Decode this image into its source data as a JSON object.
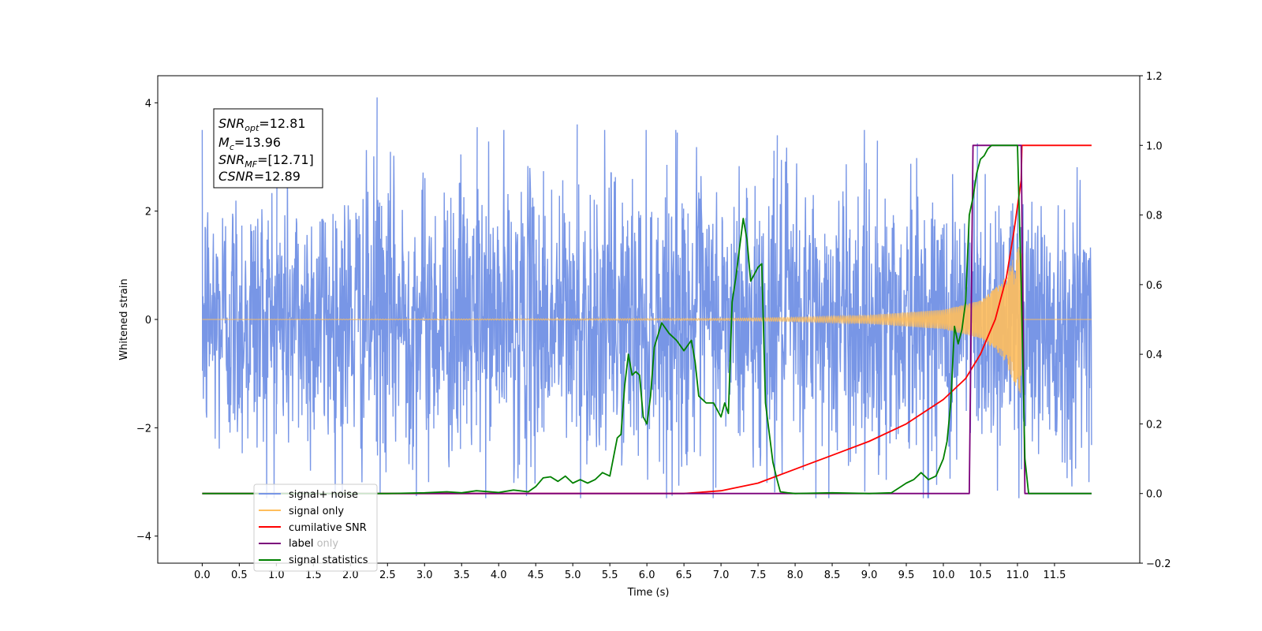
{
  "chart_data": {
    "type": "line",
    "xlabel": "Time (s)",
    "ylabel_left": "Whitened strain",
    "ylabel_right": "",
    "xlim": [
      -0.6,
      12.65
    ],
    "ylim_left": [
      -4.5,
      4.5
    ],
    "ylim_right": [
      -0.2,
      1.2
    ],
    "x_ticks": [
      0.0,
      0.5,
      1.0,
      1.5,
      2.0,
      2.5,
      3.0,
      3.5,
      4.0,
      4.5,
      5.0,
      5.5,
      6.0,
      6.5,
      7.0,
      7.5,
      8.0,
      8.5,
      9.0,
      9.5,
      10.0,
      10.5,
      11.0,
      11.5
    ],
    "x_tick_labels": [
      "0.0",
      "0.5",
      "1.0",
      "1.5",
      "2.0",
      "2.5",
      "3.0",
      "3.5",
      "4.0",
      "4.5",
      "5.0",
      "5.5",
      "6.0",
      "6.5",
      "7.0",
      "7.5",
      "8.0",
      "8.5",
      "9.0",
      "9.5",
      "10.0",
      "10.5",
      "11.0",
      "11.5"
    ],
    "y_left_ticks": [
      -4,
      -2,
      0,
      2,
      4
    ],
    "y_left_tick_labels": [
      "−4",
      "−2",
      "0",
      "2",
      "4"
    ],
    "y_right_ticks": [
      -0.2,
      0.0,
      0.2,
      0.4,
      0.6,
      0.8,
      1.0,
      1.2
    ],
    "y_right_tick_labels": [
      "−0.2",
      "0.0",
      "0.2",
      "0.4",
      "0.6",
      "0.8",
      "1.0",
      "1.2"
    ],
    "grid": false,
    "legend_placement": "lower-left",
    "annotation": {
      "lines": [
        {
          "base": "SNR",
          "sub": "opt",
          "value": "=12.81"
        },
        {
          "base": "M",
          "sub": "c",
          "value": "=13.96"
        },
        {
          "base": "SNR",
          "sub": "MF",
          "value": "=[12.71]"
        },
        {
          "base": "CSNR",
          "sub": "",
          "value": "=12.89"
        }
      ]
    },
    "series": [
      {
        "name": "signal+ noise",
        "axis": "left",
        "color": "#7896e6",
        "kind": "noise",
        "x_range": [
          0.0,
          12.0
        ],
        "amplitude_typical": 1.8,
        "peak_values": [
          3.85,
          4.1,
          3.55,
          3.6,
          3.45,
          3.4,
          3.3,
          3.25
        ]
      },
      {
        "name": "signal only",
        "axis": "left",
        "color": "#ffbe5c",
        "kind": "chirp",
        "x_range": [
          0.0,
          11.05
        ],
        "envelope": [
          [
            0.0,
            0.0
          ],
          [
            7.0,
            0.02
          ],
          [
            8.0,
            0.04
          ],
          [
            9.0,
            0.08
          ],
          [
            10.0,
            0.18
          ],
          [
            10.5,
            0.35
          ],
          [
            10.8,
            0.7
          ],
          [
            11.0,
            1.3
          ],
          [
            11.05,
            1.4
          ],
          [
            11.08,
            0.0
          ],
          [
            12.0,
            0.0
          ]
        ]
      },
      {
        "name": "cumilative SNR",
        "axis": "right",
        "color": "#ff0000",
        "x": [
          0.0,
          6.0,
          6.5,
          7.0,
          7.5,
          8.0,
          8.5,
          9.0,
          9.5,
          10.0,
          10.3,
          10.5,
          10.7,
          10.85,
          10.95,
          11.05,
          11.06,
          12.0
        ],
        "y": [
          0.0,
          0.0,
          0.0,
          0.008,
          0.03,
          0.07,
          0.11,
          0.15,
          0.2,
          0.27,
          0.33,
          0.4,
          0.5,
          0.62,
          0.75,
          0.9,
          1.0,
          1.0
        ]
      },
      {
        "name": "label",
        "axis": "right",
        "color": "#7b007b",
        "x": [
          0.0,
          10.35,
          10.4,
          11.05,
          11.1,
          12.0
        ],
        "y": [
          0.0,
          0.0,
          1.0,
          1.0,
          0.0,
          0.0
        ]
      },
      {
        "name": "label only",
        "axis": "right",
        "color": "",
        "x": [],
        "y": []
      },
      {
        "name": "signal statistics",
        "axis": "right",
        "color": "#008000",
        "x": [
          0.0,
          2.5,
          3.0,
          3.3,
          3.5,
          3.7,
          4.0,
          4.2,
          4.4,
          4.5,
          4.6,
          4.7,
          4.8,
          4.9,
          5.0,
          5.1,
          5.2,
          5.3,
          5.4,
          5.5,
          5.6,
          5.65,
          5.7,
          5.75,
          5.8,
          5.85,
          5.9,
          5.95,
          6.0,
          6.05,
          6.1,
          6.2,
          6.3,
          6.4,
          6.5,
          6.6,
          6.65,
          6.7,
          6.8,
          6.9,
          7.0,
          7.05,
          7.1,
          7.15,
          7.2,
          7.3,
          7.35,
          7.4,
          7.5,
          7.55,
          7.6,
          7.7,
          7.75,
          7.8,
          7.9,
          8.0,
          8.5,
          9.0,
          9.3,
          9.5,
          9.6,
          9.7,
          9.8,
          9.9,
          10.0,
          10.05,
          10.1,
          10.15,
          10.2,
          10.25,
          10.3,
          10.35,
          10.4,
          10.45,
          10.5,
          10.55,
          10.6,
          10.65,
          10.7,
          10.8,
          10.9,
          11.0,
          11.05,
          11.1,
          11.15,
          12.0
        ],
        "y": [
          0.0,
          0.0,
          0.002,
          0.005,
          0.002,
          0.008,
          0.003,
          0.01,
          0.005,
          0.02,
          0.045,
          0.048,
          0.035,
          0.05,
          0.03,
          0.04,
          0.03,
          0.04,
          0.06,
          0.05,
          0.16,
          0.17,
          0.31,
          0.4,
          0.34,
          0.35,
          0.34,
          0.22,
          0.2,
          0.28,
          0.42,
          0.49,
          0.46,
          0.44,
          0.41,
          0.44,
          0.38,
          0.28,
          0.26,
          0.26,
          0.22,
          0.26,
          0.23,
          0.55,
          0.62,
          0.79,
          0.73,
          0.61,
          0.65,
          0.66,
          0.26,
          0.09,
          0.045,
          0.005,
          0.002,
          0.0,
          0.002,
          0.0,
          0.002,
          0.03,
          0.04,
          0.06,
          0.04,
          0.05,
          0.1,
          0.15,
          0.26,
          0.48,
          0.43,
          0.47,
          0.55,
          0.8,
          0.85,
          0.92,
          0.96,
          0.97,
          0.99,
          1.0,
          1.0,
          1.0,
          1.0,
          1.0,
          0.6,
          0.1,
          0.0,
          0.0
        ]
      }
    ]
  }
}
